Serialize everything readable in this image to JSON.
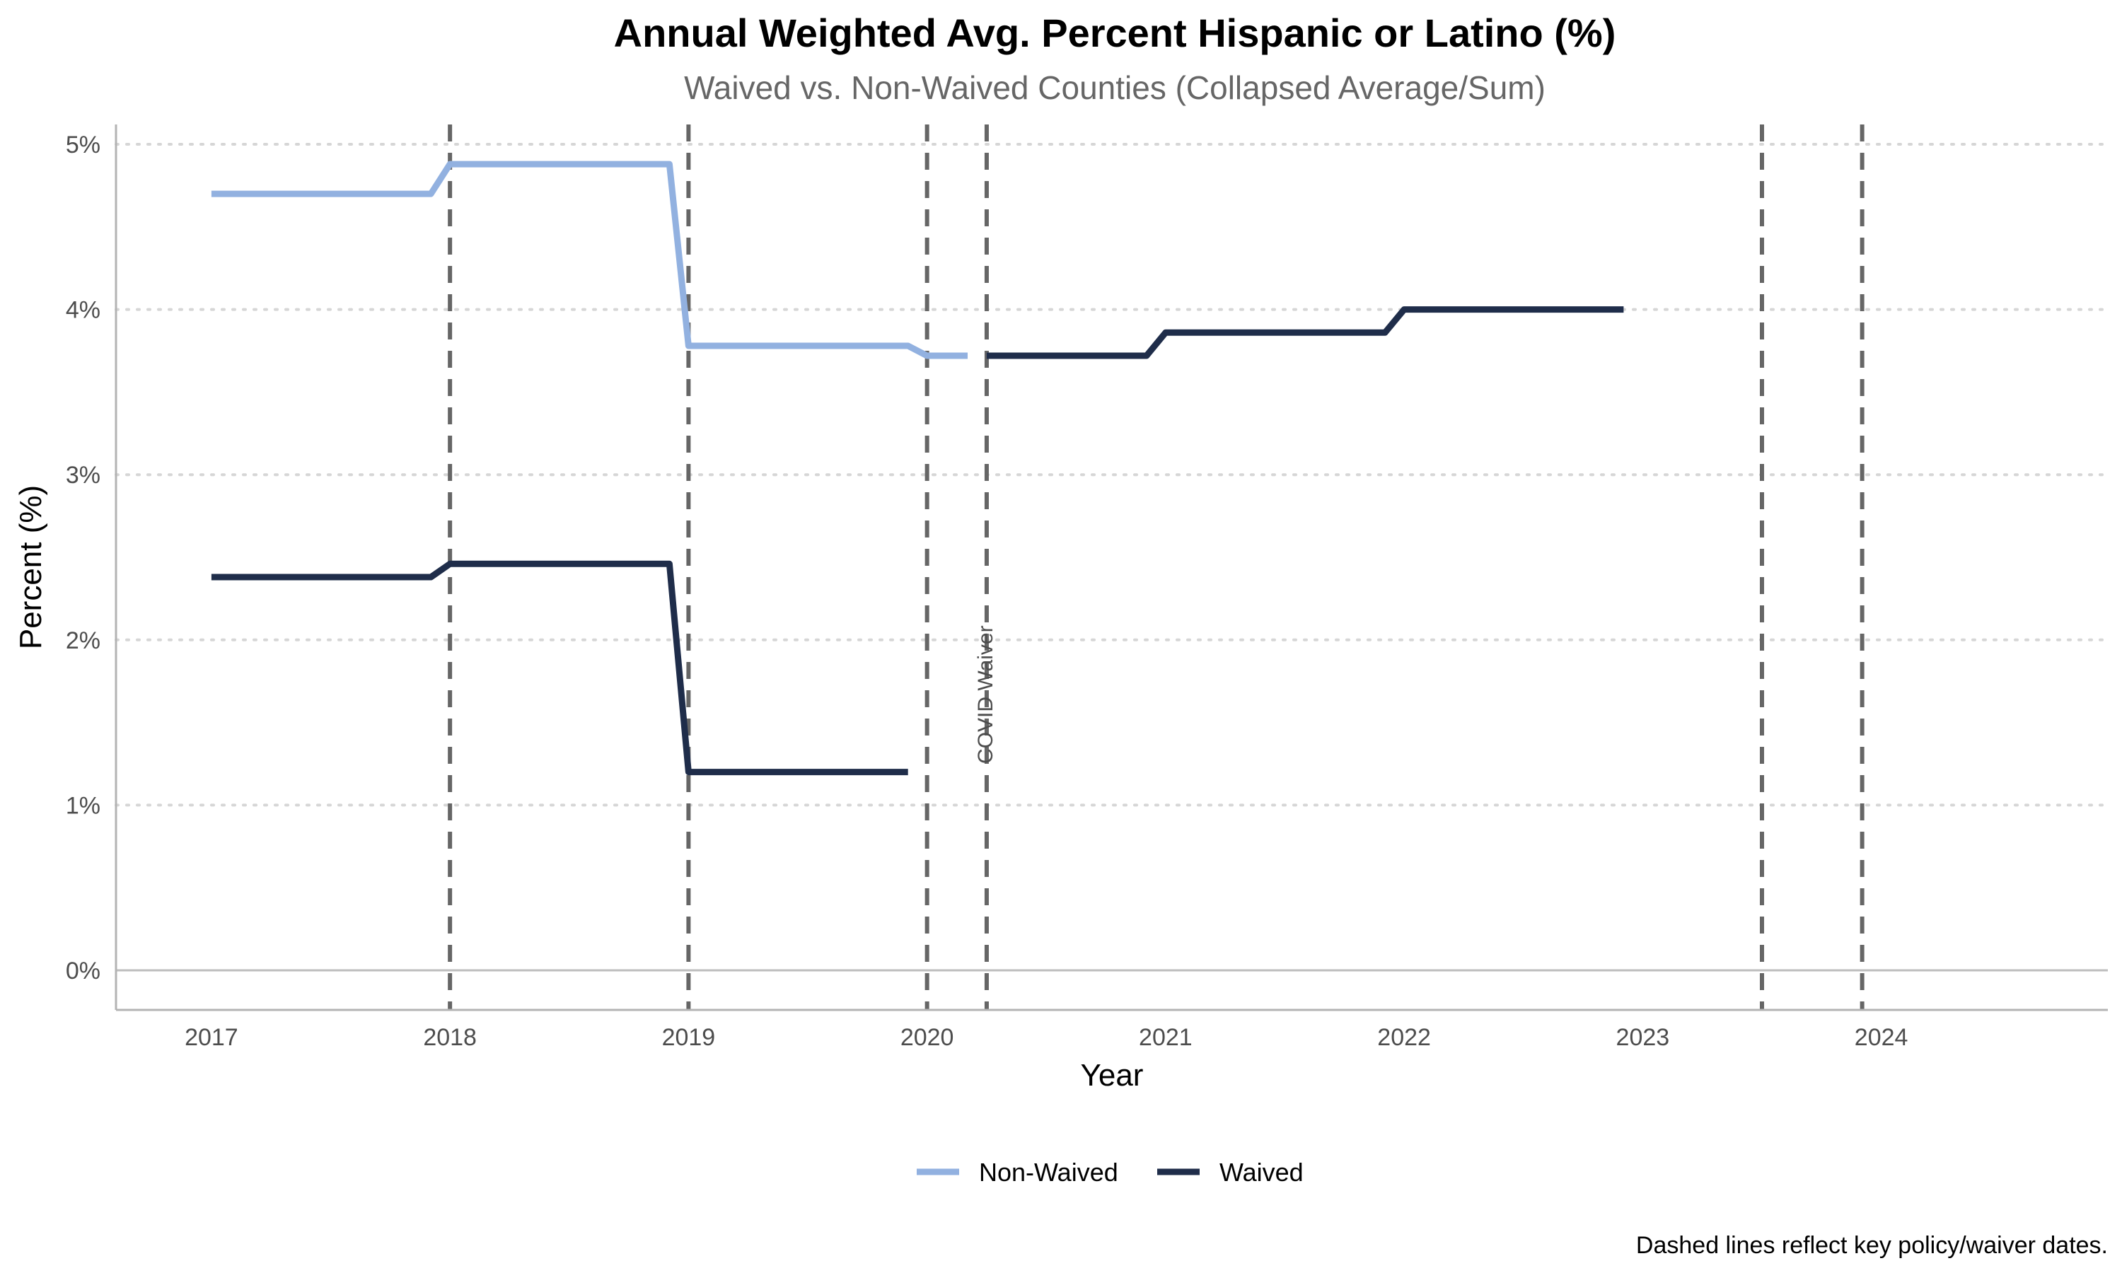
{
  "chart_data": {
    "type": "line",
    "title": "Annual Weighted Avg. Percent Hispanic or Latino (%)",
    "subtitle": "Waived vs. Non-Waived Counties (Collapsed Average/Sum)",
    "xlabel": "Year",
    "ylabel": "Percent (%)",
    "xlim": [
      2016.6,
      2024.95
    ],
    "ylim": [
      -0.24,
      5.12
    ],
    "x_ticks": [
      2017,
      2018,
      2019,
      2020,
      2021,
      2022,
      2023,
      2024
    ],
    "x_tick_labels": [
      "2017",
      "2018",
      "2019",
      "2020",
      "2021",
      "2022",
      "2023",
      "2024"
    ],
    "y_ticks": [
      0,
      1,
      2,
      3,
      4,
      5
    ],
    "y_tick_labels": [
      "0%",
      "1%",
      "2%",
      "3%",
      "4%",
      "5%"
    ],
    "grid": "horizontal dotted",
    "legend_position": "bottom",
    "colors": {
      "Non-Waived": "#92b1e0",
      "Waived": "#1f2d4a",
      "vline": "#666666"
    },
    "vlines": [
      2018.0,
      2019.0,
      2020.0,
      2020.25,
      2023.5,
      2023.92
    ],
    "annotations": [
      {
        "text": "COVID Waiver",
        "x": 2020.25,
        "y": 1.25
      }
    ],
    "caption": "Dashed lines reflect key policy/waiver dates.",
    "series": [
      {
        "name": "Non-Waived",
        "segments": [
          [
            {
              "x": 2017.0,
              "y": 4.7
            },
            {
              "x": 2017.92,
              "y": 4.7
            },
            {
              "x": 2018.0,
              "y": 4.88
            },
            {
              "x": 2018.92,
              "y": 4.88
            },
            {
              "x": 2019.0,
              "y": 3.78
            },
            {
              "x": 2019.92,
              "y": 3.78
            },
            {
              "x": 2020.0,
              "y": 3.72
            },
            {
              "x": 2020.17,
              "y": 3.72
            }
          ]
        ]
      },
      {
        "name": "Waived",
        "segments": [
          [
            {
              "x": 2017.0,
              "y": 2.38
            },
            {
              "x": 2017.92,
              "y": 2.38
            },
            {
              "x": 2018.0,
              "y": 2.46
            },
            {
              "x": 2018.92,
              "y": 2.46
            },
            {
              "x": 2019.0,
              "y": 1.2
            },
            {
              "x": 2019.92,
              "y": 1.2
            }
          ],
          [
            {
              "x": 2020.25,
              "y": 3.72
            },
            {
              "x": 2020.92,
              "y": 3.72
            },
            {
              "x": 2021.0,
              "y": 3.86
            },
            {
              "x": 2021.92,
              "y": 3.86
            },
            {
              "x": 2022.0,
              "y": 4.0
            },
            {
              "x": 2022.92,
              "y": 4.0
            }
          ]
        ]
      }
    ]
  }
}
